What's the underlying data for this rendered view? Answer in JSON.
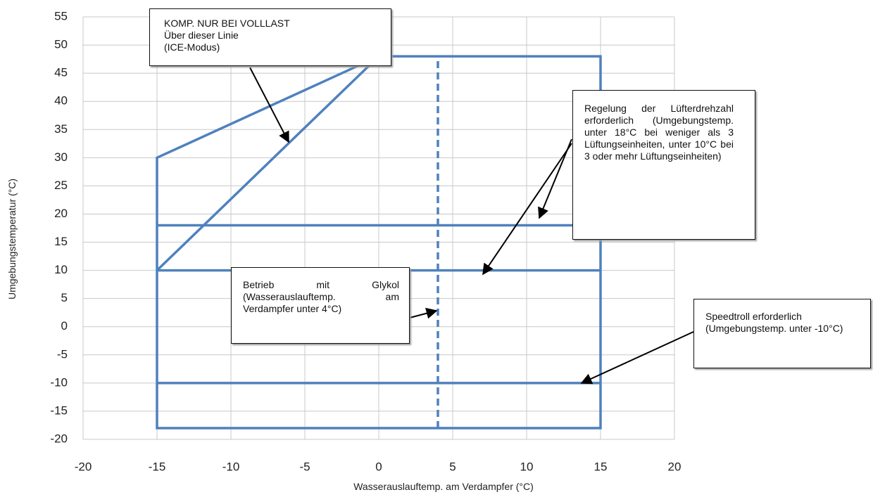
{
  "chart_data": {
    "type": "line",
    "xlabel": "Wasserauslauftemp. am Verdampfer (°C)",
    "ylabel": "Umgebungstemperatur (°C)",
    "xlim": [
      -20,
      20
    ],
    "ylim": [
      -20,
      55
    ],
    "xticks": [
      -20,
      -15,
      -10,
      -5,
      0,
      5,
      10,
      15,
      20
    ],
    "yticks": [
      -20,
      -15,
      -10,
      -5,
      0,
      5,
      10,
      15,
      20,
      25,
      30,
      35,
      40,
      45,
      50,
      55
    ],
    "grid": true,
    "series": [
      {
        "color": "#4f81bd",
        "x": [
          0,
          15,
          15,
          -15,
          -15,
          0
        ],
        "values": [
          48,
          48,
          -18,
          -18,
          30,
          48
        ]
      },
      {
        "color": "#4f81bd",
        "x": [
          -15,
          0
        ],
        "values": [
          10,
          48
        ]
      },
      {
        "color": "#4f81bd",
        "x": [
          -15,
          15
        ],
        "values": [
          18,
          18
        ]
      },
      {
        "color": "#4f81bd",
        "x": [
          -15,
          15
        ],
        "values": [
          10,
          10
        ]
      },
      {
        "color": "#4f81bd",
        "x": [
          -15,
          15
        ],
        "values": [
          -10,
          -10
        ]
      },
      {
        "color": "#4f81bd",
        "x": [
          4,
          4
        ],
        "values": [
          -18,
          48
        ],
        "dashed": true
      }
    ],
    "annotations": [
      {
        "lines": [
          "KOMP. NUR BEI VOLLLAST",
          "Über dieser Linie",
          "(ICE-Modus)"
        ]
      },
      {
        "text": "Regelung der Lüfterdrehzahl erforderlich (Umgebungstemp. unter 18°C bei weniger als 3 Lüftungseinheiten, unter 10°C bei 3 oder mehr Lüftungseinheiten)"
      },
      {
        "text": "Betrieb mit Glykol (Wasserauslauftemp. am Verdampfer unter 4°C)"
      },
      {
        "text": "Speedtroll erforderlich (Umgebungstemp. unter -10°C)"
      }
    ]
  }
}
